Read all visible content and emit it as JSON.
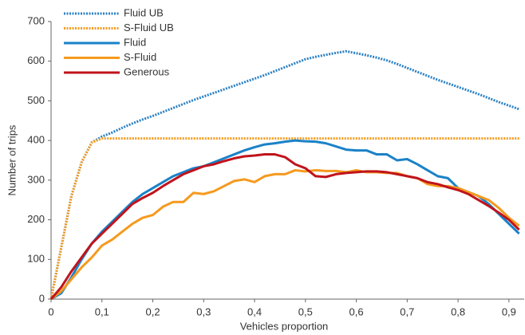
{
  "chart_data": {
    "type": "line",
    "x_label": "Vehicles proportion",
    "y_label": "Number of trips",
    "x": [
      0,
      0.02,
      0.04,
      0.06,
      0.08,
      0.1,
      0.12,
      0.14,
      0.16,
      0.18,
      0.2,
      0.22,
      0.24,
      0.26,
      0.28,
      0.3,
      0.32,
      0.34,
      0.36,
      0.38,
      0.4,
      0.42,
      0.44,
      0.46,
      0.48,
      0.5,
      0.52,
      0.54,
      0.56,
      0.58,
      0.6,
      0.62,
      0.64,
      0.66,
      0.68,
      0.7,
      0.72,
      0.74,
      0.76,
      0.78,
      0.8,
      0.82,
      0.84,
      0.86,
      0.88,
      0.9,
      0.92
    ],
    "xlim": [
      0,
      0.93
    ],
    "xticks": [
      0,
      {
        "value": 0.1,
        "label": "0,1"
      },
      {
        "value": 0.2,
        "label": "0,2"
      },
      {
        "value": 0.3,
        "label": "0,3"
      },
      {
        "value": 0.4,
        "label": "0,4"
      },
      {
        "value": 0.5,
        "label": "0,5"
      },
      {
        "value": 0.6,
        "label": "0,6"
      },
      {
        "value": 0.7,
        "label": "0,7"
      },
      {
        "value": 0.8,
        "label": "0,8"
      },
      {
        "value": 0.9,
        "label": "0,9"
      }
    ],
    "ylim": [
      0,
      700
    ],
    "yticks": [
      0,
      100,
      200,
      300,
      400,
      500,
      600,
      700
    ],
    "series": [
      {
        "name": "Fluid UB",
        "color": "#2a80c4",
        "style": "dotted",
        "values": [
          0,
          130,
          260,
          345,
          395,
          410,
          420,
          432,
          443,
          453,
          462,
          472,
          482,
          492,
          502,
          511,
          520,
          529,
          538,
          547,
          556,
          565,
          575,
          585,
          595,
          605,
          611,
          616,
          621,
          625,
          620,
          615,
          609,
          602,
          593,
          583,
          573,
          563,
          553,
          544,
          535,
          526,
          517,
          507,
          497,
          488,
          479
        ]
      },
      {
        "name": "S-Fluid UB",
        "color": "#f59a1e",
        "style": "dotted",
        "values": [
          0,
          130,
          260,
          345,
          395,
          405,
          405,
          405,
          405,
          405,
          405,
          405,
          405,
          405,
          405,
          405,
          405,
          405,
          405,
          405,
          405,
          405,
          405,
          405,
          405,
          405,
          405,
          405,
          405,
          405,
          405,
          405,
          405,
          405,
          405,
          405,
          405,
          405,
          405,
          405,
          405,
          405,
          405,
          405,
          405,
          405,
          405
        ]
      },
      {
        "name": "Fluid",
        "color": "#1a82c8",
        "style": "solid",
        "values": [
          0,
          15,
          55,
          100,
          140,
          170,
          195,
          220,
          245,
          265,
          280,
          295,
          310,
          320,
          330,
          335,
          345,
          355,
          365,
          375,
          383,
          390,
          393,
          397,
          400,
          398,
          397,
          393,
          385,
          377,
          375,
          375,
          365,
          365,
          350,
          353,
          340,
          325,
          310,
          305,
          280,
          270,
          260,
          240,
          215,
          190,
          165
        ]
      },
      {
        "name": "S-Fluid",
        "color": "#f59a1e",
        "style": "solid",
        "values": [
          0,
          20,
          50,
          80,
          105,
          135,
          150,
          170,
          190,
          205,
          212,
          233,
          245,
          245,
          268,
          265,
          272,
          285,
          298,
          302,
          295,
          310,
          315,
          315,
          325,
          322,
          325,
          323,
          323,
          320,
          325,
          320,
          320,
          318,
          318,
          310,
          305,
          290,
          285,
          285,
          280,
          270,
          260,
          250,
          230,
          205,
          185
        ]
      },
      {
        "name": "Generous",
        "color": "#c0141c",
        "style": "solid",
        "values": [
          0,
          30,
          70,
          105,
          140,
          165,
          190,
          215,
          240,
          255,
          268,
          285,
          300,
          315,
          325,
          335,
          340,
          348,
          355,
          360,
          362,
          365,
          365,
          358,
          340,
          330,
          310,
          308,
          315,
          318,
          320,
          322,
          322,
          320,
          315,
          310,
          305,
          295,
          290,
          282,
          275,
          265,
          250,
          235,
          218,
          200,
          175
        ]
      }
    ]
  }
}
